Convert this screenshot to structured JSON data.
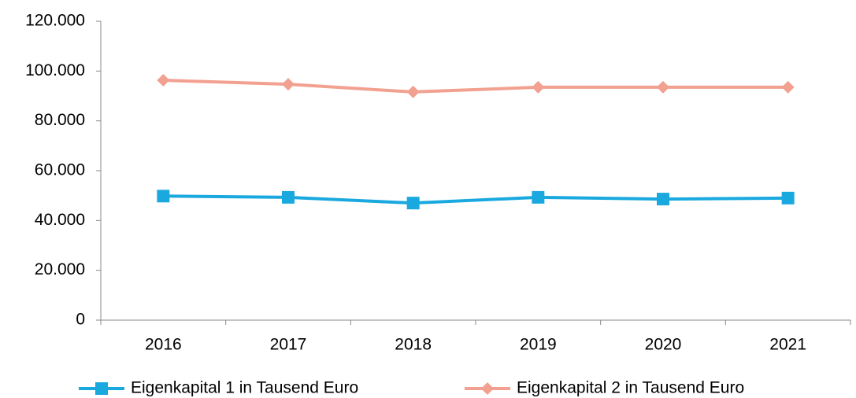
{
  "chart_data": {
    "type": "line",
    "categories": [
      "2016",
      "2017",
      "2018",
      "2019",
      "2020",
      "2021"
    ],
    "series": [
      {
        "name": "Eigenkapital 1 in Tausend Euro",
        "color": "#1aa9df",
        "marker": "square",
        "values": [
          49800,
          49300,
          47000,
          49300,
          48600,
          49000
        ]
      },
      {
        "name": "Eigenkapital 2 in Tausend Euro",
        "color": "#f2a090",
        "marker": "diamond",
        "values": [
          96300,
          94700,
          91600,
          93500,
          93500,
          93500
        ]
      }
    ],
    "ylim": [
      0,
      120000
    ],
    "yticks": [
      0,
      {
        "value": 20000,
        "label": "20.000"
      },
      {
        "value": 40000,
        "label": "40.000"
      },
      {
        "value": 60000,
        "label": "60.000"
      },
      {
        "value": 80000,
        "label": "80.000"
      },
      {
        "value": 100000,
        "label": "100.000"
      },
      {
        "value": 120000,
        "label": "120.000"
      }
    ],
    "grid": false,
    "legend": "bottom"
  }
}
